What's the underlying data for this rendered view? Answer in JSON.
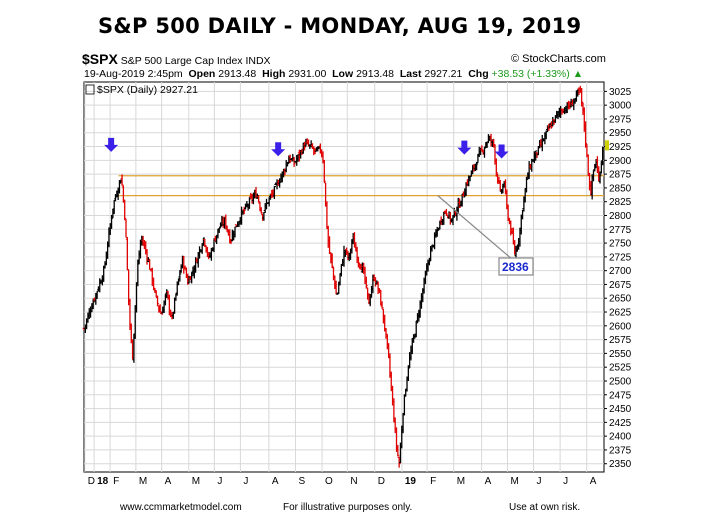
{
  "title": "S&P 500 DAILY - MONDAY, AUG 19, 2019",
  "header": {
    "symbol": "$SPX",
    "name": "S&P 500 Large Cap Index",
    "exchange": "INDX",
    "watermark": "© StockCharts.com",
    "datetime": "19-Aug-2019 2:45pm",
    "open_label": "Open",
    "open": "2913.48",
    "high_label": "High",
    "high": "2931.00",
    "low_label": "Low",
    "low": "2913.48",
    "last_label": "Last",
    "last": "2927.21",
    "chg_label": "Chg",
    "chg": "+38.53 (+1.33%)",
    "legend": "$SPX (Daily) 2927.21"
  },
  "callout": "2836",
  "footer": {
    "left": "www.ccmmarketmodel.com",
    "middle": "For illustrative purposes only.",
    "right": "Use at own risk."
  },
  "colors": {
    "up": "#000000",
    "down": "#e00000",
    "support": "#e0a030",
    "arrow": "#3a20e8",
    "callout": "#1a2ad0"
  },
  "chart_data": {
    "type": "bar",
    "title": "S&P 500 DAILY - MONDAY, AUG 19, 2019",
    "ylim": [
      2335,
      3042
    ],
    "yticks": [
      3025,
      3000,
      2975,
      2950,
      2925,
      2900,
      2875,
      2850,
      2825,
      2800,
      2775,
      2750,
      2725,
      2700,
      2675,
      2650,
      2625,
      2600,
      2575,
      2550,
      2525,
      2500,
      2475,
      2450,
      2425,
      2400,
      2375,
      2350
    ],
    "x_tick_labels": [
      "D",
      "18",
      "F",
      "M",
      "A",
      "M",
      "J",
      "J",
      "A",
      "S",
      "O",
      "N",
      "D",
      "19",
      "F",
      "M",
      "A",
      "M",
      "J",
      "J",
      "A"
    ],
    "x_tick_pos": [
      0.03,
      0.38,
      0.98,
      1.95,
      2.92,
      3.94,
      4.9,
      5.88,
      6.95,
      7.95,
      8.95,
      9.9,
      10.93,
      11.95,
      12.9,
      13.9,
      14.95,
      15.92,
      16.9,
      17.9,
      18.9
    ],
    "x_span": [
      0,
      19.55
    ],
    "support_levels": [
      2836,
      2872
    ],
    "annotations": [
      {
        "type": "arrow",
        "month": 1.02,
        "price": 2890
      },
      {
        "type": "arrow",
        "month": 7.3,
        "price": 2882
      },
      {
        "type": "arrow",
        "month": 14.3,
        "price": 2885
      },
      {
        "type": "arrow",
        "month": 15.7,
        "price": 2878
      },
      {
        "type": "callout",
        "text": "2836",
        "month": 13.3,
        "price": 2836
      }
    ],
    "price_path": [
      [
        0.0,
        2595
      ],
      [
        0.2,
        2625
      ],
      [
        0.5,
        2665
      ],
      [
        0.75,
        2700
      ],
      [
        0.95,
        2770
      ],
      [
        1.1,
        2820
      ],
      [
        1.25,
        2845
      ],
      [
        1.4,
        2872
      ],
      [
        1.55,
        2790
      ],
      [
        1.7,
        2620
      ],
      [
        1.82,
        2540
      ],
      [
        2.0,
        2700
      ],
      [
        2.15,
        2760
      ],
      [
        2.3,
        2740
      ],
      [
        2.5,
        2700
      ],
      [
        2.7,
        2650
      ],
      [
        2.9,
        2620
      ],
      [
        3.1,
        2660
      ],
      [
        3.3,
        2610
      ],
      [
        3.5,
        2670
      ],
      [
        3.7,
        2720
      ],
      [
        3.9,
        2680
      ],
      [
        4.1,
        2700
      ],
      [
        4.3,
        2730
      ],
      [
        4.5,
        2760
      ],
      [
        4.7,
        2720
      ],
      [
        4.9,
        2755
      ],
      [
        5.1,
        2780
      ],
      [
        5.3,
        2790
      ],
      [
        5.5,
        2755
      ],
      [
        5.7,
        2780
      ],
      [
        5.9,
        2800
      ],
      [
        6.1,
        2815
      ],
      [
        6.3,
        2830
      ],
      [
        6.5,
        2840
      ],
      [
        6.7,
        2800
      ],
      [
        6.9,
        2825
      ],
      [
        7.1,
        2840
      ],
      [
        7.3,
        2860
      ],
      [
        7.5,
        2880
      ],
      [
        7.7,
        2905
      ],
      [
        7.9,
        2895
      ],
      [
        8.1,
        2910
      ],
      [
        8.3,
        2930
      ],
      [
        8.5,
        2925
      ],
      [
        8.7,
        2915
      ],
      [
        8.9,
        2920
      ],
      [
        9.0,
        2900
      ],
      [
        9.1,
        2800
      ],
      [
        9.2,
        2740
      ],
      [
        9.35,
        2700
      ],
      [
        9.5,
        2650
      ],
      [
        9.65,
        2700
      ],
      [
        9.8,
        2740
      ],
      [
        9.95,
        2720
      ],
      [
        10.1,
        2760
      ],
      [
        10.3,
        2720
      ],
      [
        10.5,
        2700
      ],
      [
        10.7,
        2640
      ],
      [
        10.9,
        2690
      ],
      [
        11.1,
        2660
      ],
      [
        11.3,
        2600
      ],
      [
        11.45,
        2540
      ],
      [
        11.6,
        2460
      ],
      [
        11.75,
        2380
      ],
      [
        11.85,
        2350
      ],
      [
        12.0,
        2450
      ],
      [
        12.2,
        2530
      ],
      [
        12.4,
        2580
      ],
      [
        12.6,
        2630
      ],
      [
        12.8,
        2680
      ],
      [
        13.0,
        2730
      ],
      [
        13.2,
        2760
      ],
      [
        13.4,
        2790
      ],
      [
        13.6,
        2810
      ],
      [
        13.8,
        2790
      ],
      [
        14.0,
        2810
      ],
      [
        14.2,
        2830
      ],
      [
        14.4,
        2860
      ],
      [
        14.6,
        2880
      ],
      [
        14.8,
        2905
      ],
      [
        15.0,
        2920
      ],
      [
        15.2,
        2940
      ],
      [
        15.4,
        2930
      ],
      [
        15.5,
        2880
      ],
      [
        15.65,
        2840
      ],
      [
        15.8,
        2860
      ],
      [
        15.9,
        2810
      ],
      [
        16.1,
        2760
      ],
      [
        16.2,
        2730
      ],
      [
        16.35,
        2760
      ],
      [
        16.5,
        2820
      ],
      [
        16.7,
        2880
      ],
      [
        16.9,
        2905
      ],
      [
        17.1,
        2920
      ],
      [
        17.3,
        2940
      ],
      [
        17.5,
        2960
      ],
      [
        17.7,
        2975
      ],
      [
        17.9,
        2990
      ],
      [
        18.1,
        2995
      ],
      [
        18.3,
        3000
      ],
      [
        18.45,
        3010
      ],
      [
        18.55,
        3020
      ],
      [
        18.65,
        3025
      ],
      [
        18.75,
        2990
      ],
      [
        18.85,
        2940
      ],
      [
        18.95,
        2880
      ],
      [
        19.05,
        2840
      ],
      [
        19.15,
        2880
      ],
      [
        19.25,
        2900
      ],
      [
        19.35,
        2860
      ],
      [
        19.45,
        2900
      ],
      [
        19.5,
        2927
      ]
    ],
    "last": 2927.21
  }
}
